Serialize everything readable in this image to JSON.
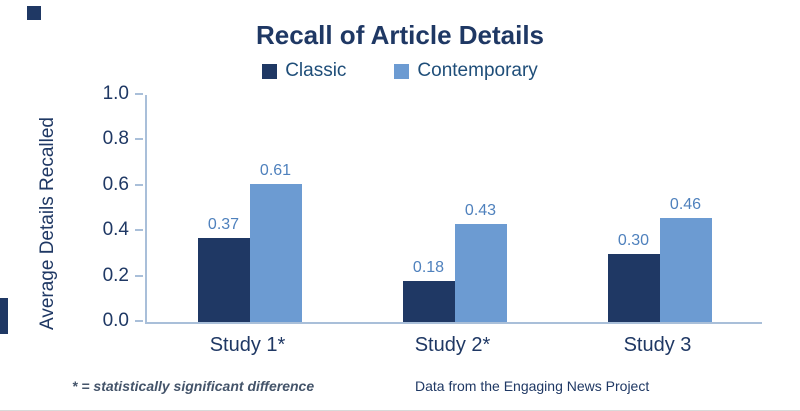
{
  "title": "Recall of Article Details",
  "legend": [
    {
      "label": "Classic",
      "color": "#1F3864"
    },
    {
      "label": "Contemporary",
      "color": "#6C9BD2"
    }
  ],
  "chart_data": {
    "type": "bar",
    "title": "Recall of Article Details",
    "categories": [
      "Study 1*",
      "Study 2*",
      "Study 3"
    ],
    "series": [
      {
        "name": "Classic",
        "color": "#1F3864",
        "values": [
          0.37,
          0.18,
          0.3
        ]
      },
      {
        "name": "Contemporary",
        "color": "#6C9BD2",
        "values": [
          0.61,
          0.43,
          0.46
        ]
      }
    ],
    "xlabel": "",
    "ylabel": "Average Details Recalled",
    "ylim": [
      0,
      1.0
    ],
    "yticks": [
      "0.0",
      "0.2",
      "0.4",
      "0.6",
      "0.8",
      "1.0"
    ],
    "grid": false,
    "legend_position": "top",
    "value_label_format": "0.00"
  },
  "footnotes": {
    "left": "* = statistically significant difference",
    "right": "Data from the Engaging News Project"
  }
}
